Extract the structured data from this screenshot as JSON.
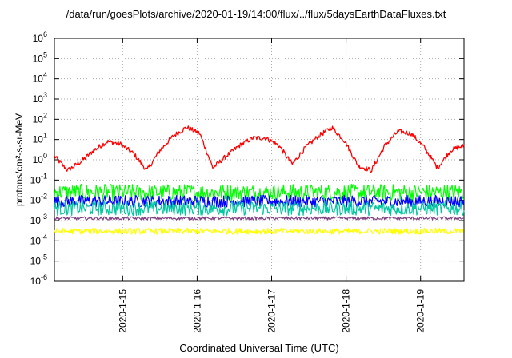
{
  "chart_data": {
    "type": "line",
    "title": "/data/run/goesPlots/archive/2020-01-19/14:00/flux/../flux/5daysEarthDataFluxes.txt",
    "xlabel": "Coordinated Universal Time (UTC)",
    "ylabel": "protons/cm²-s-sr-MeV",
    "y_scale": "log",
    "ylim": [
      1e-06,
      1000000.0
    ],
    "y_ticks": [
      {
        "mant": "10",
        "exp": "-6"
      },
      {
        "mant": "10",
        "exp": "-5"
      },
      {
        "mant": "10",
        "exp": "-4"
      },
      {
        "mant": "10",
        "exp": "-3"
      },
      {
        "mant": "10",
        "exp": "-2"
      },
      {
        "mant": "10",
        "exp": "-1"
      },
      {
        "mant": "10",
        "exp": "0"
      },
      {
        "mant": "10",
        "exp": "1"
      },
      {
        "mant": "10",
        "exp": "2"
      },
      {
        "mant": "10",
        "exp": "3"
      },
      {
        "mant": "10",
        "exp": "4"
      },
      {
        "mant": "10",
        "exp": "5"
      },
      {
        "mant": "10",
        "exp": "6"
      }
    ],
    "xlim": [
      "2020-01-14 02:00",
      "2020-01-19 14:00"
    ],
    "x_ticks": [
      "2020-1-15",
      "2020-1-16",
      "2020-1-17",
      "2020-1-18",
      "2020-1-19"
    ],
    "grid": true,
    "series": [
      {
        "color": "#ff0000",
        "values": [
          1.5,
          0.3,
          0.8,
          3,
          8,
          6,
          2,
          0.3,
          3,
          15,
          40,
          20,
          0.4,
          1.5,
          5,
          12,
          12,
          5,
          0.6,
          4,
          15,
          40,
          8,
          0.5,
          0.3,
          5,
          25,
          20,
          4,
          0.4,
          3,
          5
        ],
        "noise": 0.12
      },
      {
        "color": "#00ff00",
        "level": 0.025,
        "noise": 0.4
      },
      {
        "color": "#0000ff",
        "level": 0.009,
        "noise": 0.3
      },
      {
        "color": "#00c8a0",
        "level": 0.004,
        "noise": 0.35
      },
      {
        "color": "#804080",
        "level": 0.0013,
        "noise": 0.08
      },
      {
        "color": "#ffff00",
        "level": 0.0003,
        "noise": 0.15
      }
    ]
  }
}
